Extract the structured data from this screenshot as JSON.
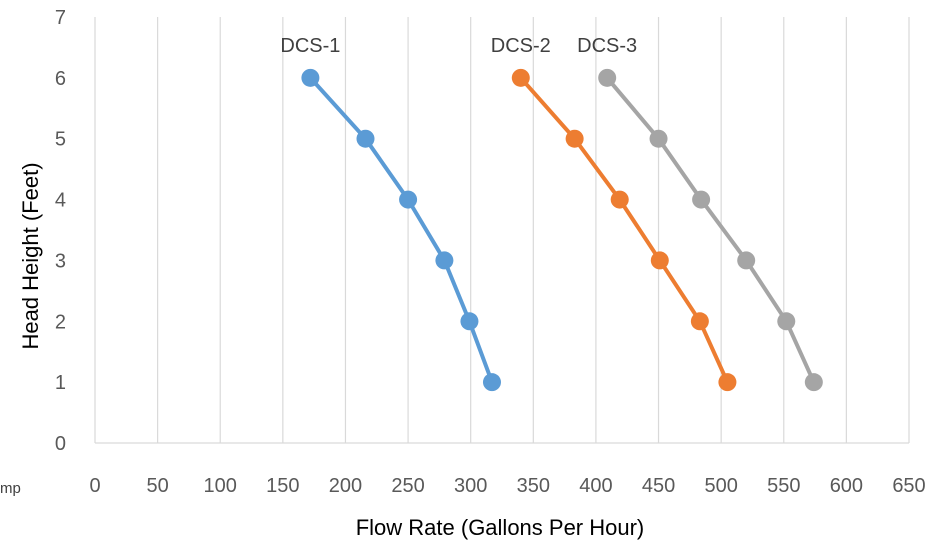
{
  "chart_data": {
    "type": "line",
    "title": "",
    "xlabel": "Flow Rate (Gallons Per Hour)",
    "ylabel": "Head Height (Feet)",
    "xlim": [
      0,
      650
    ],
    "ylim": [
      0,
      7
    ],
    "x_ticks": [
      "0",
      "50",
      "100",
      "150",
      "200",
      "250",
      "300",
      "350",
      "400",
      "450",
      "500",
      "550",
      "600",
      "650"
    ],
    "y_ticks": [
      "0",
      "1",
      "2",
      "3",
      "4",
      "5",
      "6",
      "7"
    ],
    "grid": "vertical",
    "legend": "none",
    "series": [
      {
        "name": "DCS-1",
        "color": "#5B9BD5",
        "points": [
          {
            "x": 172,
            "y": 6
          },
          {
            "x": 216,
            "y": 5
          },
          {
            "x": 250,
            "y": 4
          },
          {
            "x": 279,
            "y": 3
          },
          {
            "x": 299,
            "y": 2
          },
          {
            "x": 317,
            "y": 1
          }
        ]
      },
      {
        "name": "DCS-2",
        "color": "#ED7D31",
        "points": [
          {
            "x": 340,
            "y": 6
          },
          {
            "x": 383,
            "y": 5
          },
          {
            "x": 419,
            "y": 4
          },
          {
            "x": 451,
            "y": 3
          },
          {
            "x": 483,
            "y": 2
          },
          {
            "x": 505,
            "y": 1
          }
        ]
      },
      {
        "name": "DCS-3",
        "color": "#A5A5A5",
        "points": [
          {
            "x": 409,
            "y": 6
          },
          {
            "x": 450,
            "y": 5
          },
          {
            "x": 484,
            "y": 4
          },
          {
            "x": 520,
            "y": 3
          },
          {
            "x": 552,
            "y": 2
          },
          {
            "x": 574,
            "y": 1
          }
        ]
      }
    ],
    "stray_text": "mp"
  }
}
